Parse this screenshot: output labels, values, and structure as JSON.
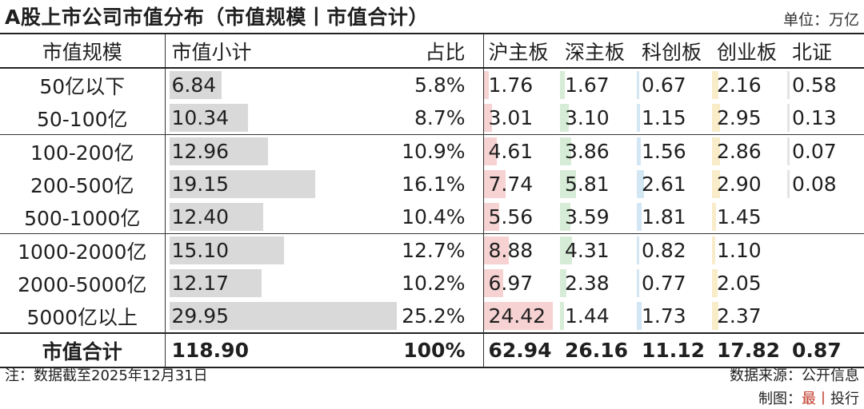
{
  "title": "A股上市公司市值分布（市值规模丨市值合计）",
  "unit": "单位：万亿",
  "headers": [
    "市值规模",
    "市值小计",
    "占比",
    "沪主板",
    "深主板",
    "科创板",
    "创业板",
    "北证"
  ],
  "colors": {
    "subtotal_bar": "#d9d9d9",
    "exchange_bars": [
      "#f6d2d2",
      "#d7ecd6",
      "#d3e6f3",
      "#f9ecc9",
      "#e4e4e4"
    ]
  },
  "chart_data": {
    "type": "table",
    "title": "A股上市公司市值分布（市值规模丨市值合计）",
    "unit": "万亿",
    "columns": [
      "市值规模",
      "市值小计",
      "占比",
      "沪主板",
      "深主板",
      "科创板",
      "创业板",
      "北证"
    ],
    "rows": [
      {
        "scale": "50亿以下",
        "subtotal": "6.84",
        "share": "5.8%",
        "ex": [
          "1.76",
          "1.67",
          "0.67",
          "2.16",
          "0.58"
        ]
      },
      {
        "scale": "50-100亿",
        "subtotal": "10.34",
        "share": "8.7%",
        "ex": [
          "3.01",
          "3.10",
          "1.15",
          "2.95",
          "0.13"
        ]
      },
      {
        "scale": "100-200亿",
        "subtotal": "12.96",
        "share": "10.9%",
        "ex": [
          "4.61",
          "3.86",
          "1.56",
          "2.86",
          "0.07"
        ]
      },
      {
        "scale": "200-500亿",
        "subtotal": "19.15",
        "share": "16.1%",
        "ex": [
          "7.74",
          "5.81",
          "2.61",
          "2.90",
          "0.08"
        ]
      },
      {
        "scale": "500-1000亿",
        "subtotal": "12.40",
        "share": "10.4%",
        "ex": [
          "5.56",
          "3.59",
          "1.81",
          "1.45",
          ""
        ]
      },
      {
        "scale": "1000-2000亿",
        "subtotal": "15.10",
        "share": "12.7%",
        "ex": [
          "8.88",
          "4.31",
          "0.82",
          "1.10",
          ""
        ]
      },
      {
        "scale": "2000-5000亿",
        "subtotal": "12.17",
        "share": "10.2%",
        "ex": [
          "6.97",
          "2.38",
          "0.77",
          "2.05",
          ""
        ]
      },
      {
        "scale": "5000亿以上",
        "subtotal": "29.95",
        "share": "25.2%",
        "ex": [
          "24.42",
          "1.44",
          "1.73",
          "2.37",
          ""
        ]
      }
    ],
    "total": {
      "scale": "市值合计",
      "subtotal": "118.90",
      "share": "100%",
      "ex": [
        "62.94",
        "26.16",
        "11.12",
        "17.82",
        "0.87"
      ]
    },
    "group_starts": [
      2,
      5
    ]
  },
  "footer": {
    "note": "注：数据截至2025年12月31日",
    "source": "数据来源：公开信息",
    "credit_prefix": "制图：",
    "credit_brand": "最",
    "credit_sep": "丨",
    "credit_name": "投行"
  }
}
